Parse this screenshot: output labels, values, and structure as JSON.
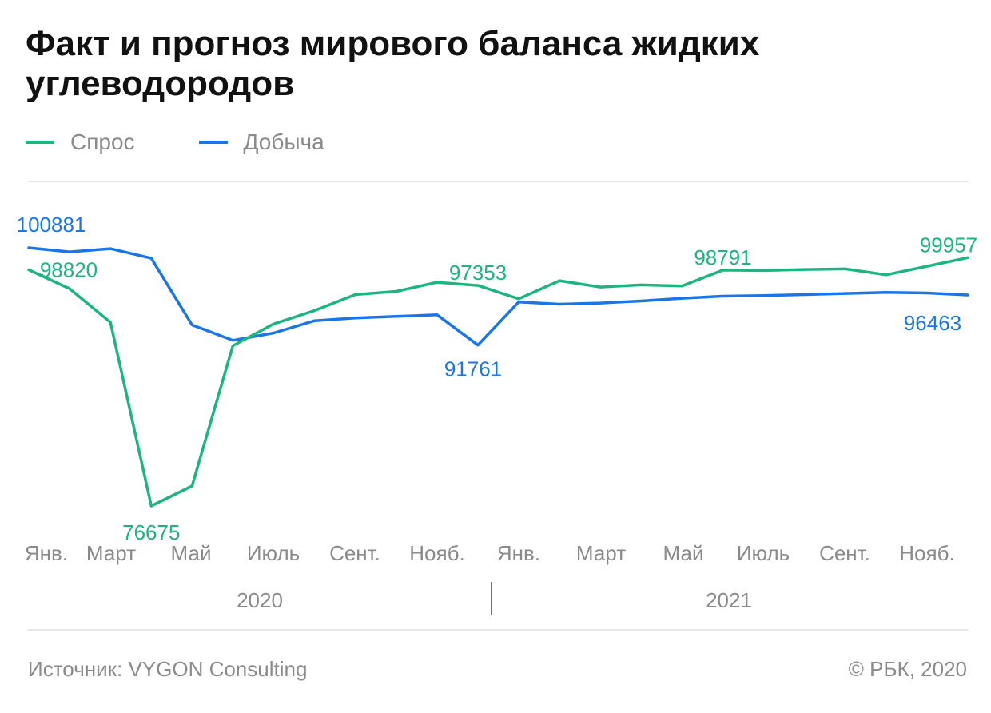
{
  "header": {
    "title": "Факт и прогноз мирового баланса жидких углеводородов"
  },
  "legend": [
    {
      "label": "Спрос",
      "color": "#1cb57f"
    },
    {
      "label": "Добыча",
      "color": "#1a76e8"
    }
  ],
  "chart_data": {
    "type": "line",
    "title": "Факт и прогноз мирового баланса жидких углеводородов",
    "x": [
      "Янв. 2020",
      "Февр. 2020",
      "Март 2020",
      "Апр. 2020",
      "Май 2020",
      "Июнь 2020",
      "Июль 2020",
      "Авг. 2020",
      "Сент. 2020",
      "Окт. 2020",
      "Нояб. 2020",
      "Дек. 2020",
      "Янв. 2021",
      "Февр. 2021",
      "Март 2021",
      "Апр. 2021",
      "Май 2021",
      "Июнь 2021",
      "Июль 2021",
      "Авг. 2021",
      "Сент. 2021",
      "Окт. 2021",
      "Нояб. 2021",
      "Дек. 2021"
    ],
    "tick_labels": [
      "Янв.",
      "Март",
      "Май",
      "Июль",
      "Сент.",
      "Нояб.",
      "Янв.",
      "Март",
      "Май",
      "Июль",
      "Сент.",
      "Нояб."
    ],
    "year_labels": [
      "2020",
      "2021"
    ],
    "series": [
      {
        "name": "Спрос",
        "color": "#1cb57f",
        "values": [
          98820,
          97050,
          93900,
          76675,
          78550,
          91700,
          93750,
          95000,
          96500,
          96800,
          97650,
          97353,
          96100,
          97800,
          97200,
          97400,
          97300,
          98791,
          98750,
          98850,
          98900,
          98350,
          99150,
          99957
        ]
      },
      {
        "name": "Добыча",
        "color": "#1a76e8",
        "values": [
          100881,
          100500,
          100800,
          99900,
          93650,
          92200,
          92900,
          94050,
          94300,
          94450,
          94600,
          91761,
          95800,
          95600,
          95700,
          95900,
          96150,
          96350,
          96400,
          96500,
          96600,
          96700,
          96650,
          96463
        ]
      }
    ],
    "annotations": [
      {
        "series": 1,
        "index": 0,
        "text": "100881"
      },
      {
        "series": 0,
        "index": 0,
        "text": "98820"
      },
      {
        "series": 0,
        "index": 3,
        "text": "76675"
      },
      {
        "series": 0,
        "index": 11,
        "text": "97353"
      },
      {
        "series": 1,
        "index": 11,
        "text": "91761"
      },
      {
        "series": 0,
        "index": 17,
        "text": "98791"
      },
      {
        "series": 0,
        "index": 23,
        "text": "99957"
      },
      {
        "series": 1,
        "index": 23,
        "text": "96463"
      }
    ],
    "ylim": [
      75000,
      102000
    ],
    "grid": false
  },
  "footer": {
    "source": "Источник: VYGON Consulting",
    "copyright": "© РБК, 2020"
  }
}
